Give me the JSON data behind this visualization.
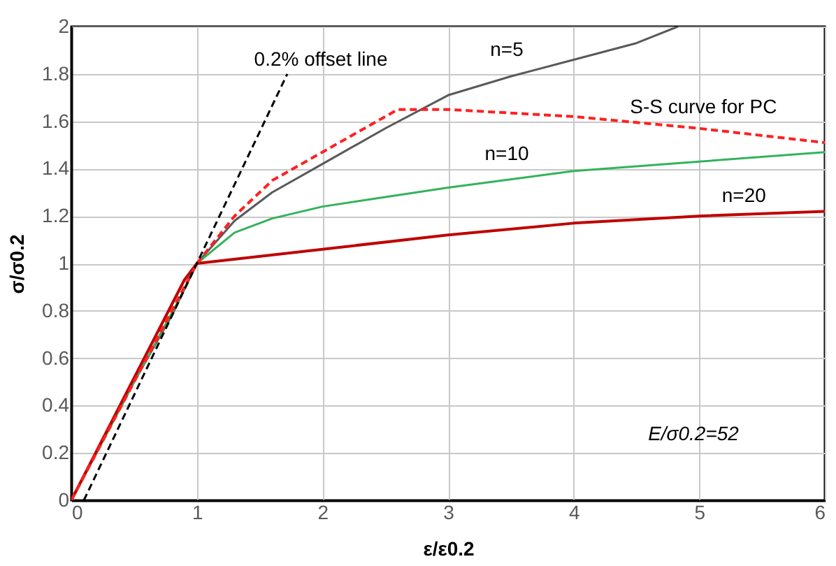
{
  "chart_data": {
    "type": "line",
    "xlabel": "ε/ε0.2",
    "ylabel": "σ/σ0.2",
    "xlim": [
      0,
      6
    ],
    "ylim": [
      0,
      2
    ],
    "xticks": [
      0,
      1,
      2,
      3,
      4,
      5,
      6
    ],
    "yticks": [
      0,
      0.2,
      0.4,
      0.6,
      0.8,
      1,
      1.2,
      1.4,
      1.6,
      1.8,
      2
    ],
    "grid": true,
    "legend": false,
    "marker": "none",
    "series": [
      {
        "name": "n=5",
        "color": "#595959",
        "line_style": "solid",
        "x": [
          0,
          0.5,
          0.8,
          1,
          1.3,
          1.6,
          2,
          2.5,
          3,
          3.5,
          4,
          4.5,
          4.83
        ],
        "values": [
          0,
          0.5,
          0.78,
          1,
          1.18,
          1.3,
          1.42,
          1.57,
          1.71,
          1.79,
          1.86,
          1.93,
          2.0
        ]
      },
      {
        "name": "n=10",
        "color": "#33b35a",
        "line_style": "solid",
        "x": [
          0,
          0.5,
          0.85,
          1,
          1.3,
          1.6,
          2,
          2.5,
          3,
          4,
          5,
          6
        ],
        "values": [
          0,
          0.5,
          0.84,
          1,
          1.13,
          1.19,
          1.24,
          1.28,
          1.32,
          1.39,
          1.43,
          1.47
        ]
      },
      {
        "name": "n=20",
        "color": "#c00000",
        "line_style": "solid",
        "x": [
          0,
          0.9,
          1,
          2,
          3,
          4,
          5,
          6
        ],
        "values": [
          0,
          0.93,
          1,
          1.06,
          1.12,
          1.17,
          1.2,
          1.22
        ]
      },
      {
        "name": "S-S curve for PC",
        "color": "#ff2020",
        "line_style": "dashed",
        "x": [
          0,
          1,
          1.3,
          1.6,
          2,
          2.6,
          3,
          4,
          5,
          6
        ],
        "values": [
          0,
          1,
          1.2,
          1.35,
          1.47,
          1.65,
          1.65,
          1.62,
          1.57,
          1.51
        ]
      },
      {
        "name": "0.2% offset line",
        "color": "#000000",
        "line_style": "dashed",
        "x": [
          0.1,
          1.72
        ],
        "values": [
          0,
          1.8
        ]
      }
    ],
    "annotations": [
      "E/σ0.2=52"
    ]
  }
}
